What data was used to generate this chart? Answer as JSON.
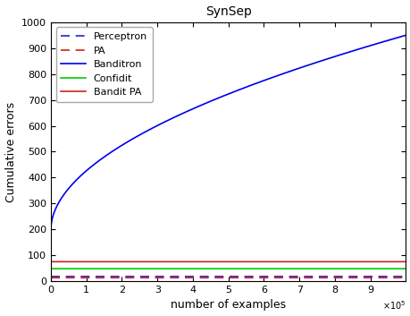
{
  "title": "SynSep",
  "xlabel": "number of examples",
  "ylabel": "Cumulative errors",
  "xlim": [
    0,
    1000000.0
  ],
  "ylim": [
    0,
    1000
  ],
  "series": {
    "Perceptron": {
      "color": "#2222cc",
      "linestyle": "--",
      "linewidth": 1.2,
      "flat_value": 18,
      "dashes": [
        6,
        4
      ]
    },
    "PA": {
      "color": "#cc2222",
      "linestyle": "--",
      "linewidth": 1.2,
      "flat_value": 13,
      "dashes": [
        6,
        4
      ]
    },
    "Banditron": {
      "color": "#0000ee",
      "linestyle": "-",
      "linewidth": 1.2,
      "start_value": 200,
      "final_value": 950,
      "power": 0.52
    },
    "Confidit": {
      "color": "#00cc00",
      "linestyle": "-",
      "linewidth": 1.2,
      "flat_value": 48
    },
    "Bandit PA": {
      "color": "#cc2222",
      "linestyle": "-",
      "linewidth": 1.2,
      "flat_value": 75
    }
  },
  "yticks": [
    0,
    100,
    200,
    300,
    400,
    500,
    600,
    700,
    800,
    900,
    1000
  ],
  "xticks": [
    0,
    100000.0,
    200000.0,
    300000.0,
    400000.0,
    500000.0,
    600000.0,
    700000.0,
    800000.0,
    900000.0
  ],
  "xtick_labels": [
    "0",
    "1",
    "2",
    "3",
    "4",
    "5",
    "6",
    "7",
    "8",
    "9"
  ],
  "background_color": "#ffffff",
  "legend_loc": "upper left",
  "title_fontsize": 10,
  "axis_fontsize": 9,
  "tick_fontsize": 8,
  "legend_fontsize": 8
}
